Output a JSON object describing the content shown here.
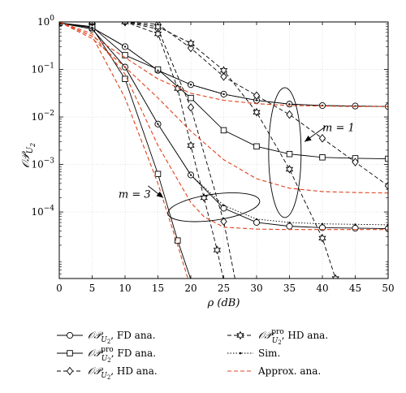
{
  "chart_data": {
    "type": "line",
    "x_label": "ρ (dB)",
    "y_label": "𝒪𝒫",
    "y_label_sub": "U",
    "y_label_sub2": "2",
    "xlim": [
      0,
      50
    ],
    "ylim_exp": [
      -5.4,
      0
    ],
    "y_scale": "log",
    "x_ticks": [
      "0",
      "5",
      "10",
      "15",
      "20",
      "25",
      "30",
      "35",
      "40",
      "45",
      "50"
    ],
    "y_ticks": [
      {
        "exp": 0,
        "base": "10",
        "sup": "0"
      },
      {
        "exp": -1,
        "base": "10",
        "sup": "−1"
      },
      {
        "exp": -2,
        "base": "10",
        "sup": "−2"
      },
      {
        "exp": -3,
        "base": "10",
        "sup": "−3"
      },
      {
        "exp": -4,
        "base": "10",
        "sup": "−4"
      }
    ],
    "annotations": [
      {
        "text": "m = 1",
        "x": 40,
        "y_exp": -2.3
      },
      {
        "text": "m = 3",
        "x": 9,
        "y_exp": -3.7
      }
    ],
    "series": [
      {
        "key": "op_fd_m1",
        "style": "solid",
        "color": "#000000",
        "marker": "circle",
        "x": [
          0,
          5,
          10,
          15,
          20,
          25,
          30,
          35,
          40,
          45,
          50
        ],
        "y": [
          -0.02,
          -0.12,
          -0.52,
          -1.02,
          -1.32,
          -1.52,
          -1.65,
          -1.73,
          -1.76,
          -1.77,
          -1.78
        ]
      },
      {
        "key": "op_fd_m3",
        "style": "solid",
        "color": "#000000",
        "marker": "circle",
        "x": [
          0,
          5,
          10,
          15,
          20,
          25,
          30,
          35,
          40,
          45,
          50
        ],
        "y": [
          -0.02,
          -0.15,
          -0.95,
          -2.15,
          -3.22,
          -3.92,
          -4.22,
          -4.3,
          -4.33,
          -4.34,
          -4.35
        ]
      },
      {
        "key": "oppro_fd_m1",
        "style": "solid",
        "color": "#000000",
        "marker": "square",
        "x": [
          0,
          5,
          10,
          15,
          20,
          25,
          30,
          35,
          40,
          45,
          50
        ],
        "y": [
          -0.02,
          -0.1,
          -0.7,
          -1.0,
          -1.6,
          -2.28,
          -2.62,
          -2.78,
          -2.85,
          -2.87,
          -2.88
        ]
      },
      {
        "key": "oppro_fd_m3",
        "style": "solid",
        "color": "#000000",
        "marker": "square",
        "x": [
          0,
          5,
          10,
          15,
          18,
          20,
          21.5
        ],
        "y": [
          -0.02,
          -0.12,
          -1.2,
          -3.2,
          -4.6,
          -5.42,
          -6.1
        ]
      },
      {
        "key": "op_hd_m1",
        "style": "dashed",
        "color": "#000000",
        "marker": "diamond",
        "x": [
          0,
          5,
          10,
          15,
          20,
          25,
          30,
          35,
          40,
          45,
          50
        ],
        "y": [
          0,
          0,
          0,
          -0.05,
          -0.55,
          -1.15,
          -1.55,
          -1.95,
          -2.45,
          -2.95,
          -3.45
        ]
      },
      {
        "key": "op_hd_m3",
        "style": "dashed",
        "color": "#000000",
        "marker": "diamond",
        "x": [
          0,
          5,
          10,
          15,
          20,
          25,
          27
        ],
        "y": [
          0,
          0,
          0,
          -0.15,
          -1.8,
          -4.2,
          -5.6
        ]
      },
      {
        "key": "oppro_hd_m1",
        "style": "dashed",
        "color": "#000000",
        "marker": "star",
        "x": [
          0,
          5,
          10,
          15,
          20,
          25,
          30,
          35,
          40,
          42
        ],
        "y": [
          0,
          0,
          0,
          -0.1,
          -0.45,
          -1.02,
          -1.9,
          -3.1,
          -4.55,
          -5.4
        ]
      },
      {
        "key": "oppro_hd_m3",
        "style": "dashed",
        "color": "#000000",
        "marker": "star",
        "x": [
          0,
          5,
          10,
          15,
          18,
          20,
          22,
          24,
          25
        ],
        "y": [
          0,
          0,
          0,
          -0.25,
          -1.4,
          -2.6,
          -3.7,
          -4.8,
          -5.45
        ]
      },
      {
        "key": "sim_m1",
        "style": "dotted",
        "color": "#000000",
        "marker": "none",
        "x": [
          0,
          5,
          10,
          15,
          20,
          25,
          30,
          35,
          40,
          45,
          50
        ],
        "y": [
          -0.02,
          -0.12,
          -0.52,
          -1.02,
          -1.32,
          -1.52,
          -1.65,
          -1.73,
          -1.76,
          -1.77,
          -1.78
        ]
      },
      {
        "key": "sim_m3",
        "style": "dotted",
        "color": "#000000",
        "marker": "none",
        "x": [
          0,
          5,
          10,
          15,
          20,
          25,
          30,
          35,
          40,
          45,
          50
        ],
        "y": [
          -0.02,
          -0.15,
          -0.95,
          -2.15,
          -3.22,
          -3.86,
          -4.15,
          -4.22,
          -4.25,
          -4.26,
          -4.27
        ]
      },
      {
        "key": "approx_fd_m1",
        "style": "dashed",
        "color": "#e0421c",
        "marker": "none",
        "x": [
          0,
          5,
          10,
          15,
          20,
          25,
          30,
          35,
          40,
          45,
          50
        ],
        "y": [
          0,
          -0.3,
          -0.75,
          -1.2,
          -1.5,
          -1.65,
          -1.72,
          -1.76,
          -1.77,
          -1.78,
          -1.78
        ]
      },
      {
        "key": "approx_pro_fd_m1",
        "style": "dashed",
        "color": "#e0421c",
        "marker": "none",
        "x": [
          0,
          5,
          10,
          15,
          20,
          25,
          30,
          35,
          40,
          45,
          50
        ],
        "y": [
          0,
          -0.35,
          -0.95,
          -1.6,
          -2.3,
          -2.9,
          -3.3,
          -3.5,
          -3.57,
          -3.59,
          -3.6
        ]
      },
      {
        "key": "approx_fd_m3",
        "style": "dashed",
        "color": "#e0421c",
        "marker": "none",
        "x": [
          0,
          5,
          10,
          15,
          20,
          22,
          25,
          30,
          35,
          40,
          45,
          50
        ],
        "y": [
          0,
          -0.25,
          -1.1,
          -2.6,
          -3.8,
          -4.1,
          -4.32,
          -4.36,
          -4.37,
          -4.37,
          -4.37,
          -4.37
        ]
      },
      {
        "key": "approx_pro_fd_m3",
        "style": "dashed",
        "color": "#e0421c",
        "marker": "none",
        "x": [
          0,
          5,
          10,
          15,
          18,
          20
        ],
        "y": [
          0,
          -0.3,
          -1.6,
          -3.4,
          -4.7,
          -5.6
        ]
      }
    ],
    "legend": [
      {
        "marker": "circle",
        "style": "solid",
        "main": "𝒪𝒫",
        "sub": "U",
        "sub2": "2",
        "sup": "",
        "suffix": ", FD ana."
      },
      {
        "marker": "star",
        "style": "dashed",
        "main": "𝒪𝒫",
        "sub": "U",
        "sub2": "2",
        "sup": "pro",
        "suffix": ", HD ana."
      },
      {
        "marker": "square",
        "style": "solid",
        "main": "𝒪𝒫",
        "sub": "U",
        "sub2": "2",
        "sup": "pro",
        "suffix": ", FD ana."
      },
      {
        "marker": "none",
        "style": "dotted",
        "main": "Sim.",
        "sub": "",
        "sub2": "",
        "sup": "",
        "suffix": ""
      },
      {
        "marker": "diamond",
        "style": "dashed",
        "main": "𝒪𝒫",
        "sub": "U",
        "sub2": "2",
        "sup": "",
        "suffix": ", HD ana."
      },
      {
        "marker": "none",
        "style": "dashed-red",
        "main": "Approx. ana.",
        "sub": "",
        "sub2": "",
        "sup": "",
        "suffix": ""
      }
    ]
  }
}
